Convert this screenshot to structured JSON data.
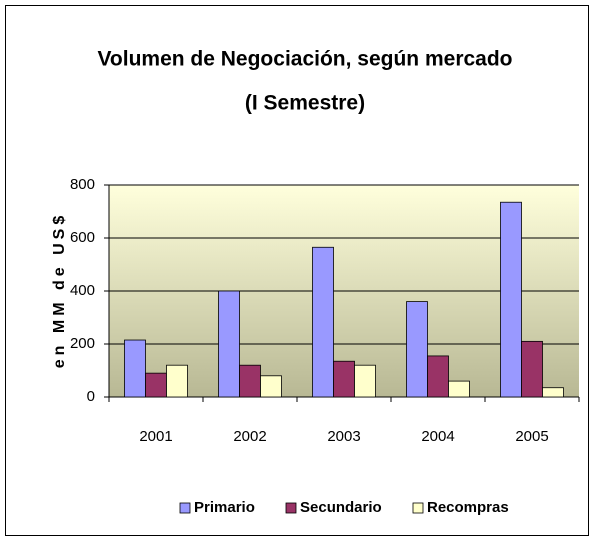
{
  "chart_data": {
    "type": "bar",
    "title": "Volumen de Negociación, según mercado",
    "subtitle": "(I Semestre)",
    "y_label": "en MM de US$",
    "categories": [
      "2001",
      "2002",
      "2003",
      "2004",
      "2005"
    ],
    "series": [
      {
        "name": "Primario",
        "color": "#9999ff",
        "values": [
          215,
          400,
          565,
          360,
          735
        ]
      },
      {
        "name": "Secundario",
        "color": "#993366",
        "values": [
          90,
          120,
          135,
          155,
          210
        ]
      },
      {
        "name": "Recompras",
        "color": "#ffffcc",
        "values": [
          120,
          80,
          120,
          60,
          35
        ]
      }
    ],
    "ylim": [
      0,
      800
    ],
    "yticks": [
      0,
      200,
      400,
      600,
      800
    ],
    "grid": true,
    "legend": "bottom"
  }
}
